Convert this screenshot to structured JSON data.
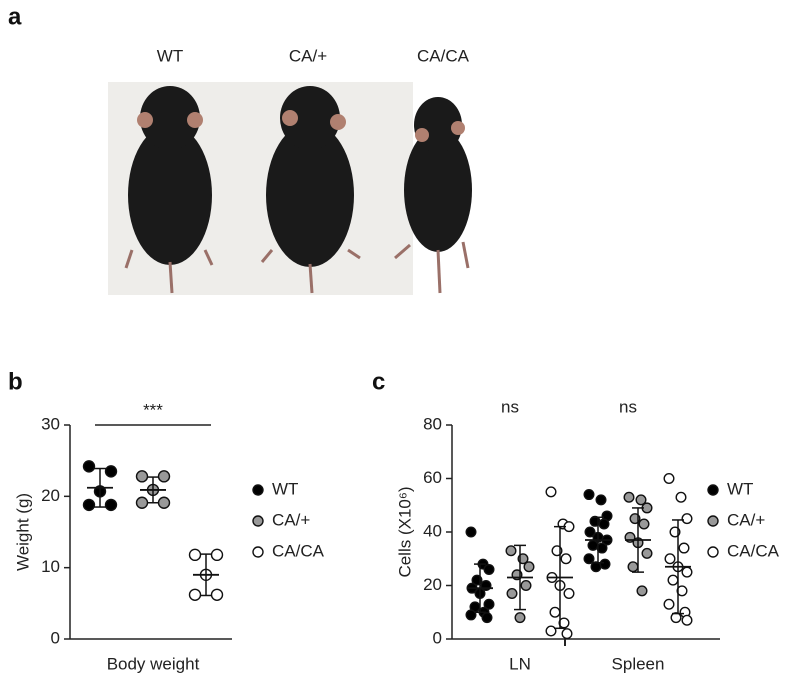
{
  "panel_a": {
    "label": "a",
    "genotypes": [
      "WT",
      "CA/+",
      "CA/CA"
    ]
  },
  "chart_data": [
    {
      "type": "dot",
      "label": "b",
      "ylabel": "Weight (g)",
      "categories": [
        "Body weight"
      ],
      "significance": [
        "***"
      ],
      "ylim": [
        0,
        30
      ],
      "yticks": [
        0,
        10,
        20,
        30
      ],
      "series": [
        {
          "name": "WT",
          "color": "#000000",
          "values": [
            [
              24.2,
              23.5,
              20.7,
              18.8,
              18.8
            ]
          ],
          "mean": [
            21.2
          ],
          "sd": [
            2.7
          ]
        },
        {
          "name": "CA/+",
          "color": "#999999",
          "values": [
            [
              22.8,
              22.8,
              20.9,
              19.1,
              19.1
            ]
          ],
          "mean": [
            20.9
          ],
          "sd": [
            1.8
          ]
        },
        {
          "name": "CA/CA",
          "color": "#ffffff",
          "values": [
            [
              11.8,
              11.8,
              9.0,
              6.2,
              6.2
            ]
          ],
          "mean": [
            9.0
          ],
          "sd": [
            2.9
          ]
        }
      ]
    },
    {
      "type": "dot",
      "label": "c",
      "ylabel": "Cells (X10⁶)",
      "categories": [
        "LN",
        "Spleen"
      ],
      "significance": [
        "ns",
        "ns"
      ],
      "ylim": [
        0,
        80
      ],
      "yticks": [
        0,
        20,
        40,
        60,
        80
      ],
      "series": [
        {
          "name": "WT",
          "color": "#000000",
          "values": [
            [
              40,
              28,
              26,
              22,
              20,
              19,
              17,
              13,
              12,
              10,
              9,
              8
            ],
            [
              54,
              52,
              46,
              44,
              43,
              40,
              38,
              37,
              35,
              34,
              30,
              28,
              27
            ]
          ],
          "mean": [
            19,
            37
          ],
          "sd": [
            9,
            8.5
          ]
        },
        {
          "name": "CA/+",
          "color": "#999999",
          "values": [
            [
              33,
              30,
              27,
              24,
              20,
              17,
              8
            ],
            [
              53,
              52,
              49,
              45,
              43,
              38,
              36,
              32,
              27,
              18
            ]
          ],
          "mean": [
            23,
            37
          ],
          "sd": [
            12,
            12
          ]
        },
        {
          "name": "CA/CA",
          "color": "#ffffff",
          "values": [
            [
              55,
              43,
              42,
              33,
              30,
              23,
              20,
              17,
              10,
              6,
              3,
              2
            ],
            [
              60,
              53,
              45,
              40,
              34,
              30,
              27,
              25,
              22,
              18,
              13,
              10,
              8,
              7
            ]
          ],
          "mean": [
            23,
            27
          ],
          "sd": [
            19,
            17.5
          ]
        }
      ]
    }
  ]
}
